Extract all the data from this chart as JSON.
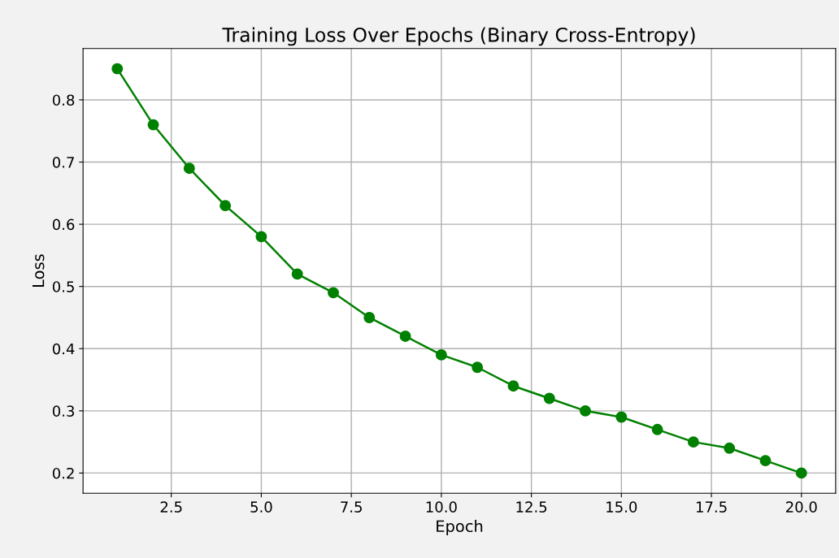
{
  "chart_data": {
    "type": "line",
    "title": "Training Loss Over Epochs (Binary Cross-Entropy)",
    "xlabel": "Epoch",
    "ylabel": "Loss",
    "x": [
      1,
      2,
      3,
      4,
      5,
      6,
      7,
      8,
      9,
      10,
      11,
      12,
      13,
      14,
      15,
      16,
      17,
      18,
      19,
      20
    ],
    "series": [
      {
        "color": "#008000",
        "values": [
          0.85,
          0.76,
          0.69,
          0.63,
          0.58,
          0.52,
          0.49,
          0.45,
          0.42,
          0.39,
          0.37,
          0.34,
          0.32,
          0.3,
          0.29,
          0.27,
          0.25,
          0.24,
          0.22,
          0.2
        ]
      }
    ],
    "xlim": [
      0.05,
      20.95
    ],
    "ylim": [
      0.1675,
      0.8825
    ],
    "xticks": [
      {
        "value": 2.5,
        "label": "2.5"
      },
      {
        "value": 5,
        "label": "5.0"
      },
      {
        "value": 7.5,
        "label": "7.5"
      },
      {
        "value": 10,
        "label": "10.0"
      },
      {
        "value": 12.5,
        "label": "12.5"
      },
      {
        "value": 15,
        "label": "15.0"
      },
      {
        "value": 17.5,
        "label": "17.5"
      },
      {
        "value": 20,
        "label": "20.0"
      }
    ],
    "yticks": [
      0.2,
      0.3,
      0.4,
      0.5,
      0.6,
      0.7,
      0.8
    ],
    "grid": true,
    "marker": "circle",
    "line_style": "solid"
  }
}
